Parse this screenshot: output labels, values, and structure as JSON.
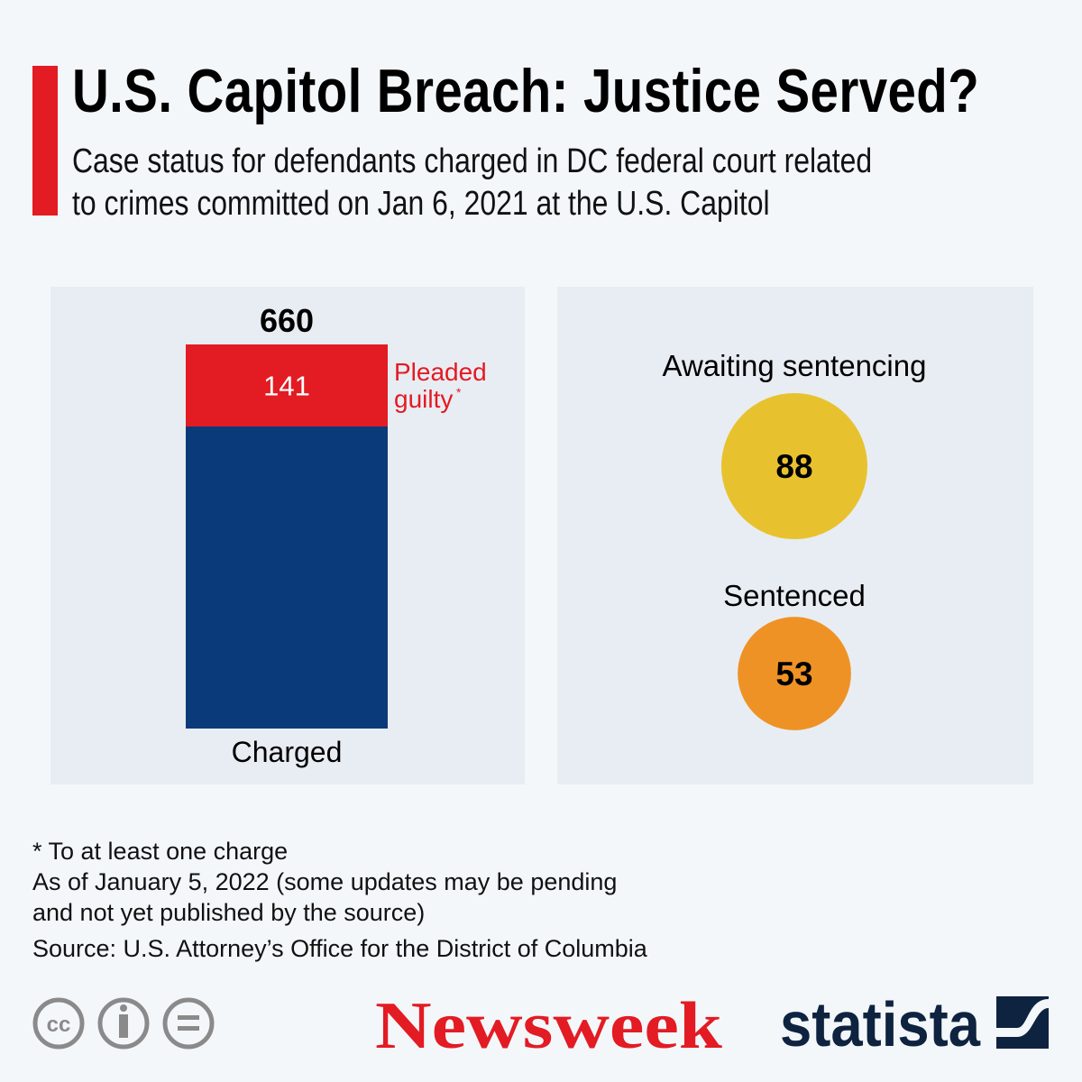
{
  "header": {
    "title": "U.S. Capitol Breach: Justice Served?",
    "subtitle_line1": "Case status for defendants charged in DC federal court related",
    "subtitle_line2": "to crimes committed on Jan 6, 2021 at the U.S. Capitol"
  },
  "chart_data": [
    {
      "type": "bar",
      "title": "",
      "categories": [
        "Charged"
      ],
      "total_label": "660",
      "series": [
        {
          "name": "Charged",
          "values": [
            660
          ],
          "color": "#0b3a7a"
        },
        {
          "name": "Pleaded guilty*",
          "values": [
            141
          ],
          "color": "#e31b23",
          "label": "141",
          "legend_line1": "Pleaded",
          "legend_line2": "guilty",
          "legend_mark": "*"
        }
      ],
      "ylim": [
        0,
        660
      ]
    },
    {
      "type": "bubble",
      "items": [
        {
          "name": "Awaiting sentencing",
          "value": 88,
          "label": "88",
          "color": "#e8c22e"
        },
        {
          "name": "Sentenced",
          "value": 53,
          "label": "53",
          "color": "#ef9226"
        }
      ]
    }
  ],
  "notes": {
    "footnote": "* To at least one charge",
    "asof_line1": "As of January 5, 2022 (some updates may be pending",
    "asof_line2": "and not yet published by the source)",
    "source": "Source: U.S. Attorney’s Office for the District of Columbia"
  },
  "footer": {
    "license_icons": [
      "cc-icon",
      "attribution-icon",
      "no-derivatives-icon"
    ],
    "newsweek_logo": "Newsweek",
    "statista_logo": "statista",
    "colors": {
      "newsweek": "#e31b23",
      "statista": "#0e233f",
      "license": "#8a8a8a"
    }
  }
}
